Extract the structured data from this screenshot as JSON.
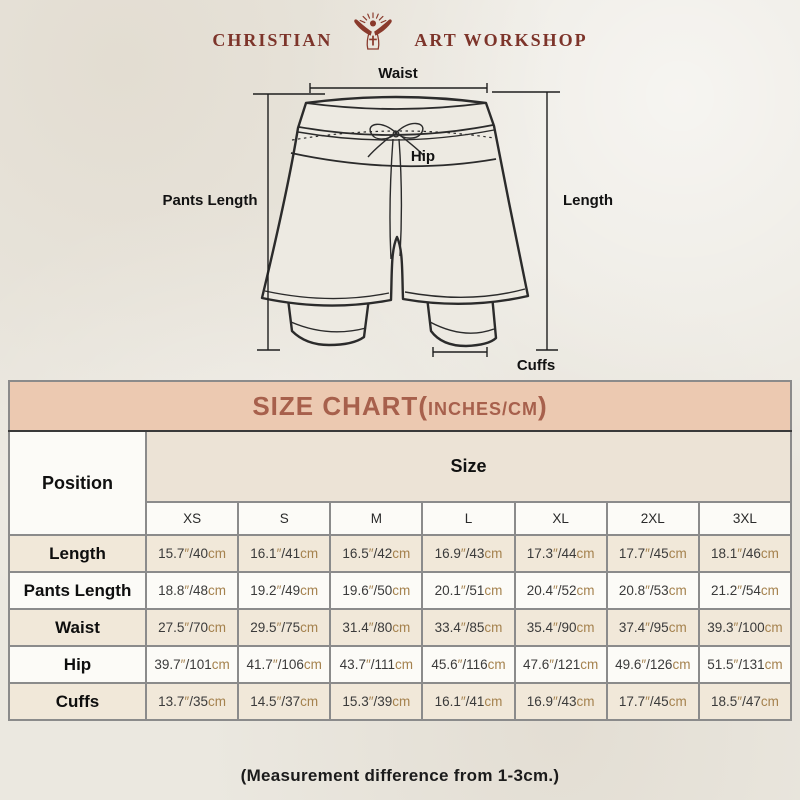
{
  "brand": {
    "left": "CHRISTIAN",
    "right": "ART WORKSHOP"
  },
  "diagram": {
    "waist_label": "Waist",
    "hip_label": "Hip",
    "pants_length_label": "Pants Length",
    "length_label": "Length",
    "cuffs_label": "Cuffs"
  },
  "table": {
    "title_main": "SIZE CHART(",
    "title_small": "INCHES/CM",
    "title_end": ")",
    "position_header": "Position",
    "size_header": "Size",
    "sizes": [
      "XS",
      "S",
      "M",
      "L",
      "XL",
      "2XL",
      "3XL"
    ],
    "unit_inch": "″",
    "unit_cm": "cm",
    "rows": [
      {
        "label": "Length",
        "cells": [
          [
            "15.7",
            "40"
          ],
          [
            "16.1",
            "41"
          ],
          [
            "16.5",
            "42"
          ],
          [
            "16.9",
            "43"
          ],
          [
            "17.3",
            "44"
          ],
          [
            "17.7",
            "45"
          ],
          [
            "18.1",
            "46"
          ]
        ]
      },
      {
        "label": "Pants Length",
        "cells": [
          [
            "18.8",
            "48"
          ],
          [
            "19.2",
            "49"
          ],
          [
            "19.6",
            "50"
          ],
          [
            "20.1",
            "51"
          ],
          [
            "20.4",
            "52"
          ],
          [
            "20.8",
            "53"
          ],
          [
            "21.2",
            "54"
          ]
        ]
      },
      {
        "label": "Waist",
        "cells": [
          [
            "27.5",
            "70"
          ],
          [
            "29.5",
            "75"
          ],
          [
            "31.4",
            "80"
          ],
          [
            "33.4",
            "85"
          ],
          [
            "35.4",
            "90"
          ],
          [
            "37.4",
            "95"
          ],
          [
            "39.3",
            "100"
          ]
        ]
      },
      {
        "label": "Hip",
        "cells": [
          [
            "39.7",
            "101"
          ],
          [
            "41.7",
            "106"
          ],
          [
            "43.7",
            "111"
          ],
          [
            "45.6",
            "116"
          ],
          [
            "47.6",
            "121"
          ],
          [
            "49.6",
            "126"
          ],
          [
            "51.5",
            "131"
          ]
        ]
      },
      {
        "label": "Cuffs",
        "cells": [
          [
            "13.7",
            "35"
          ],
          [
            "14.5",
            "37"
          ],
          [
            "15.3",
            "39"
          ],
          [
            "16.1",
            "41"
          ],
          [
            "16.9",
            "43"
          ],
          [
            "17.7",
            "45"
          ],
          [
            "18.5",
            "47"
          ]
        ]
      }
    ]
  },
  "footer": {
    "note": "(Measurement difference from 1-3cm.)"
  },
  "colors": {
    "accent_maroon": "#7d342a",
    "title_bg": "#ecc9b1",
    "title_text": "#a7604c",
    "beige_row": "#f1e8d9",
    "size_header_bg": "#ece3d6",
    "unit_brown": "#a5824e",
    "grid_border": "#8b8b8b"
  }
}
